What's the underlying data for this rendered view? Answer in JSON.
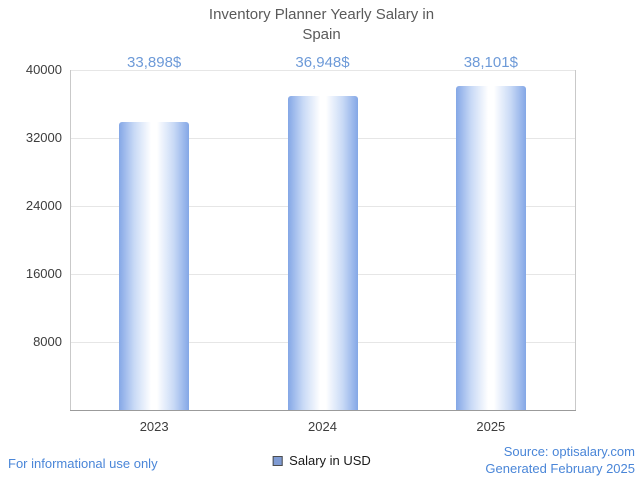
{
  "title": "Inventory Planner Yearly Salary in Spain",
  "legend": {
    "label": "Salary in USD",
    "swatch_color": "#7f9bd3"
  },
  "footer": {
    "left": "For informational use only",
    "source": "Source: optisalary.com",
    "generated": "Generated February 2025"
  },
  "colors": {
    "value_label": "#6d9ad8",
    "footer_text": "#4a86d8",
    "title_text": "#5a5a5a",
    "bar_edge": "#84a7e6",
    "bar_mid": "#c9daf6",
    "gridline": "#e6e6e6",
    "axis_line": "#9b9b9b",
    "tick_text": "#3d3d3d"
  },
  "chart_data": {
    "type": "bar",
    "title": "Inventory Planner Yearly Salary in Spain",
    "categories": [
      "2023",
      "2024",
      "2025"
    ],
    "series": [
      {
        "name": "Salary in USD",
        "values": [
          33898,
          36948,
          38101
        ]
      }
    ],
    "value_labels": [
      "33,898$",
      "36,948$",
      "38,101$"
    ],
    "xlabel": "",
    "ylabel": "",
    "ylim": [
      0,
      40000
    ],
    "yticks": [
      8000,
      16000,
      24000,
      32000,
      40000
    ],
    "grid": true,
    "legend_position": "bottom"
  }
}
